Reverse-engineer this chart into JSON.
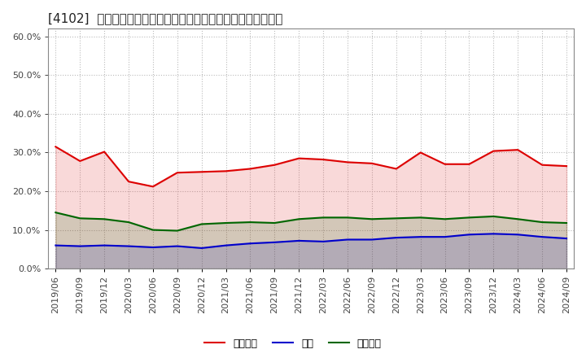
{
  "title": "[4102]  売上偉権、在庫、買入債務の総資産に対する比率の推移",
  "background_color": "#ffffff",
  "plot_bg_color": "#ffffff",
  "grid_color": "#bbbbbb",
  "ylim": [
    0.0,
    0.62
  ],
  "yticks": [
    0.0,
    0.1,
    0.2,
    0.3,
    0.4,
    0.5,
    0.6
  ],
  "dates": [
    "2019/06",
    "2019/09",
    "2019/12",
    "2020/03",
    "2020/06",
    "2020/09",
    "2020/12",
    "2021/03",
    "2021/06",
    "2021/09",
    "2021/12",
    "2022/03",
    "2022/06",
    "2022/09",
    "2022/12",
    "2023/03",
    "2023/06",
    "2023/09",
    "2023/12",
    "2024/03",
    "2024/06",
    "2024/09"
  ],
  "series_urikake": [
    0.315,
    0.278,
    0.302,
    0.225,
    0.212,
    0.248,
    0.25,
    0.252,
    0.258,
    0.268,
    0.285,
    0.282,
    0.275,
    0.272,
    0.258,
    0.3,
    0.27,
    0.27,
    0.304,
    0.307,
    0.268,
    0.265
  ],
  "series_zaiko": [
    0.06,
    0.058,
    0.06,
    0.058,
    0.055,
    0.058,
    0.053,
    0.06,
    0.065,
    0.068,
    0.072,
    0.07,
    0.075,
    0.075,
    0.08,
    0.082,
    0.082,
    0.088,
    0.09,
    0.088,
    0.082,
    0.078
  ],
  "series_kaiire": [
    0.145,
    0.13,
    0.128,
    0.12,
    0.1,
    0.098,
    0.115,
    0.118,
    0.12,
    0.118,
    0.128,
    0.132,
    0.132,
    0.128,
    0.13,
    0.132,
    0.128,
    0.132,
    0.135,
    0.128,
    0.12,
    0.118
  ],
  "color_urikake": "#dd0000",
  "color_zaiko": "#0000cc",
  "color_kaiire": "#006600",
  "legend_urikake": "売上偉権",
  "legend_zaiko": "在庫",
  "legend_kaiire": "買入債務",
  "linewidth": 1.5,
  "title_fontsize": 11,
  "tick_fontsize": 8,
  "legend_fontsize": 9
}
